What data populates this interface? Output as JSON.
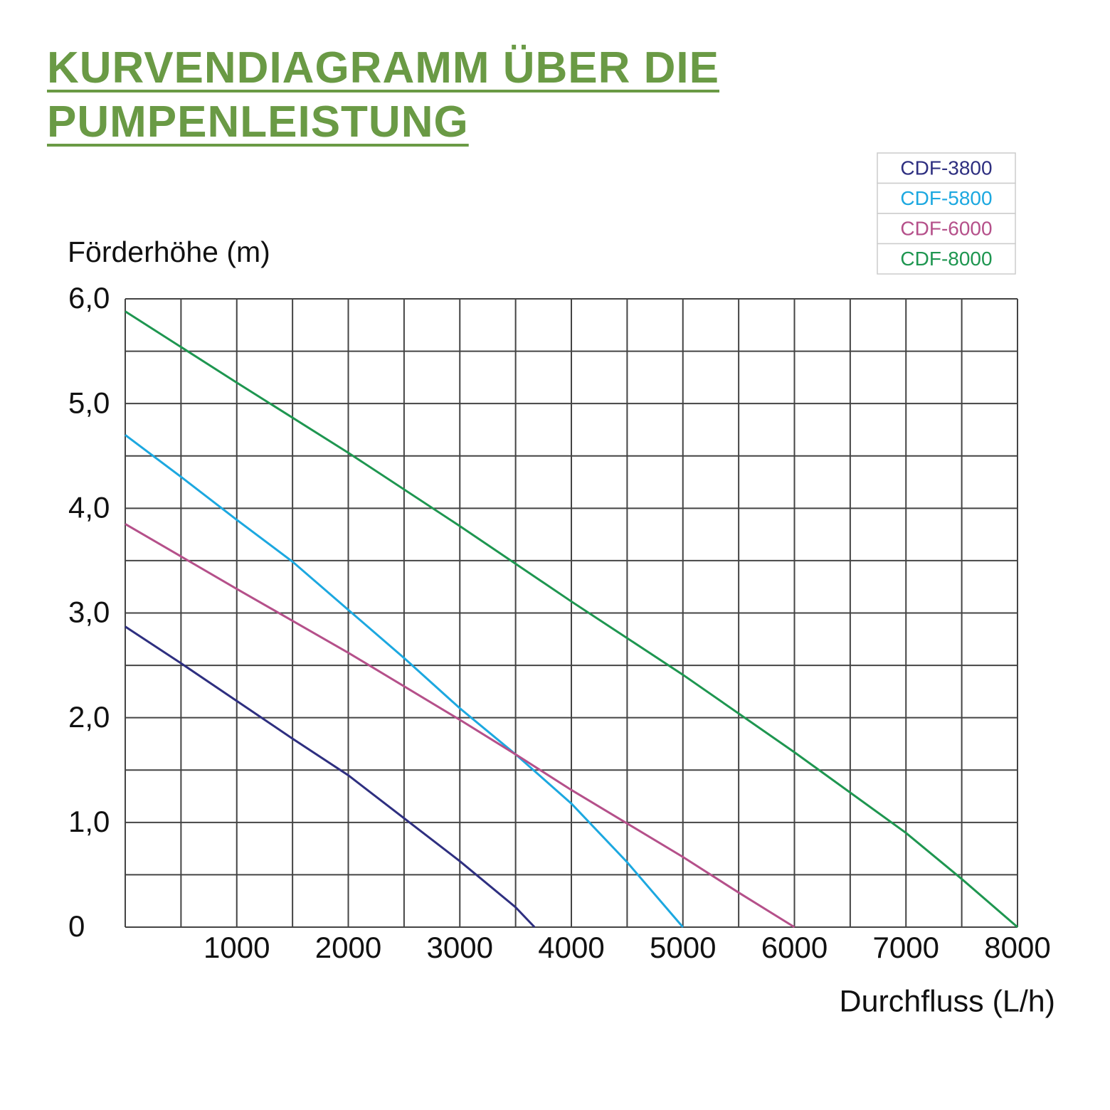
{
  "chart_data": {
    "type": "line",
    "title": "KURVENDIAGRAMM ÜBER DIE PUMPENLEISTUNG",
    "y_label": "Förderhöhe (m)",
    "x_label": "Durchfluss (L/h)",
    "xlim": [
      0,
      8000
    ],
    "ylim": [
      0,
      6
    ],
    "xticks": [
      1000,
      2000,
      3000,
      4000,
      5000,
      6000,
      7000,
      8000
    ],
    "yticks": [
      {
        "value": 6,
        "label": "6,0"
      },
      {
        "value": 5,
        "label": "5,0"
      },
      {
        "value": 4,
        "label": "4,0"
      },
      {
        "value": 3,
        "label": "3,0"
      },
      {
        "value": 2,
        "label": "2,0"
      },
      {
        "value": 1,
        "label": "1,0"
      },
      0
    ],
    "grid": true,
    "xgrid": [
      0,
      500,
      1000,
      1500,
      2000,
      2500,
      3000,
      3500,
      4000,
      4500,
      5000,
      5500,
      6000,
      6500,
      7000,
      7500,
      8000
    ],
    "ygrid": [
      0,
      0.5,
      1,
      1.5,
      2,
      2.5,
      3,
      3.5,
      4,
      4.5,
      5,
      5.5,
      6
    ],
    "legend": "top-right",
    "series": [
      {
        "name": "CDF-3800",
        "color": "#2e2f80",
        "x": [
          0,
          500,
          1000,
          1500,
          2000,
          2500,
          3000,
          3500,
          3670
        ],
        "values": [
          2.87,
          2.52,
          2.16,
          1.8,
          1.45,
          1.04,
          0.63,
          0.19,
          0
        ]
      },
      {
        "name": "CDF-5800",
        "color": "#1ca8e0",
        "x": [
          0,
          500,
          1000,
          1500,
          2000,
          2500,
          3000,
          3500,
          4000,
          4500,
          5000
        ],
        "values": [
          4.7,
          4.3,
          3.89,
          3.49,
          3.03,
          2.57,
          2.09,
          1.65,
          1.18,
          0.62,
          0
        ]
      },
      {
        "name": "CDF-6000",
        "color": "#b5508a",
        "x": [
          0,
          1000,
          2000,
          3000,
          3500,
          4000,
          4500,
          5000,
          5500,
          6000
        ],
        "values": [
          3.85,
          3.23,
          2.62,
          1.98,
          1.65,
          1.31,
          0.99,
          0.67,
          0.33,
          0
        ]
      },
      {
        "name": "CDF-8000",
        "color": "#1e9650",
        "x": [
          0,
          1000,
          2000,
          3000,
          4000,
          5000,
          6000,
          7000,
          7500,
          8000
        ],
        "values": [
          5.88,
          5.2,
          4.53,
          3.83,
          3.11,
          2.41,
          1.67,
          0.9,
          0.46,
          0
        ]
      }
    ]
  }
}
